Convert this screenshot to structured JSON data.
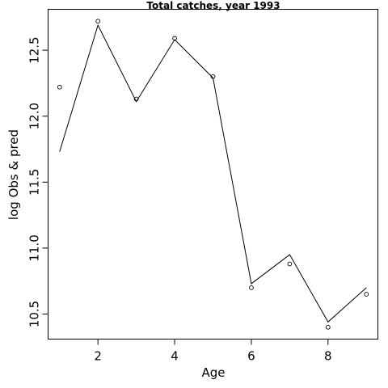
{
  "chart_data": {
    "type": "line",
    "title": "Total catches, year 1993",
    "xlabel": "Age",
    "ylabel": "log Obs & pred",
    "xlim": [
      0.7,
      9.3
    ],
    "ylim": [
      10.31,
      12.81
    ],
    "xticks": [
      2,
      4,
      6,
      8
    ],
    "yticks": [
      10.5,
      11.0,
      11.5,
      12.0,
      12.5
    ],
    "ytick_labels": [
      "10.5",
      "11.0",
      "11.5",
      "12.0",
      "12.5"
    ],
    "x": [
      1,
      2,
      3,
      4,
      5,
      6,
      7,
      8,
      9
    ],
    "series": [
      {
        "kind": "line",
        "values": [
          11.73,
          12.69,
          12.11,
          12.58,
          12.29,
          10.73,
          10.95,
          10.44,
          10.7
        ]
      },
      {
        "kind": "points",
        "values": [
          12.22,
          12.72,
          12.13,
          12.59,
          12.3,
          10.7,
          10.88,
          10.4,
          10.65
        ]
      }
    ],
    "grid": false,
    "colors": {
      "line": "#000000",
      "points": "#000000",
      "background": "#ffffff"
    }
  }
}
